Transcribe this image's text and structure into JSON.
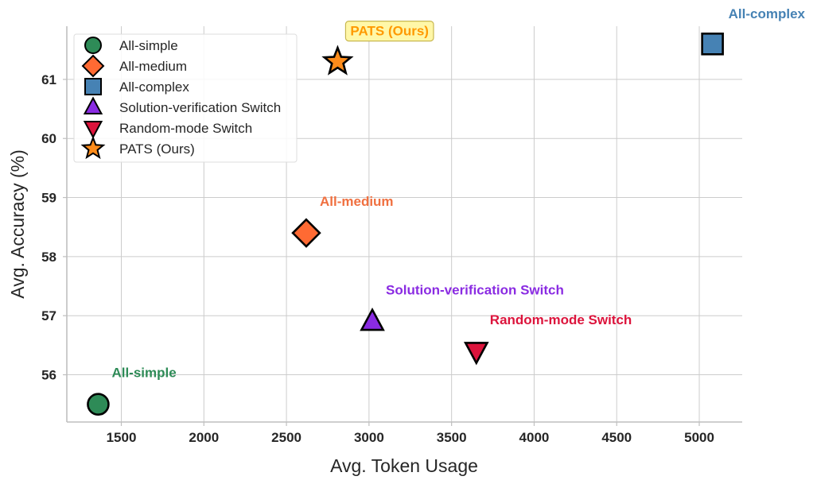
{
  "chart_data": {
    "type": "scatter",
    "xlabel": "Avg. Token Usage",
    "ylabel": "Avg. Accuracy (%)",
    "xlim": [
      1170,
      5260
    ],
    "ylim": [
      55.2,
      61.9
    ],
    "xticks": [
      1500,
      2000,
      2500,
      3000,
      3500,
      4000,
      4500,
      5000
    ],
    "yticks": [
      56,
      57,
      58,
      59,
      60,
      61
    ],
    "grid": true,
    "legend_position": "top-left",
    "series": [
      {
        "name": "All-simple",
        "marker": "circle",
        "color": "#2e8b57",
        "x": 1360,
        "y": 55.5,
        "annotation": "All-simple",
        "annotation_color": "#2e8b57"
      },
      {
        "name": "All-medium",
        "marker": "diamond",
        "color": "#ff6a33",
        "x": 2620,
        "y": 58.4,
        "annotation": "All-medium",
        "annotation_color": "#f07040"
      },
      {
        "name": "All-complex",
        "marker": "square",
        "color": "#4682b4",
        "x": 5080,
        "y": 61.6,
        "annotation": "All-complex",
        "annotation_color": "#4682b4"
      },
      {
        "name": "Solution-verification Switch",
        "marker": "triangle-up",
        "color": "#8a2be2",
        "x": 3020,
        "y": 56.9,
        "annotation": "Solution-verification Switch",
        "annotation_color": "#8a2be2"
      },
      {
        "name": "Random-mode Switch",
        "marker": "triangle-down",
        "color": "#dc143c",
        "x": 3650,
        "y": 56.4,
        "annotation": "Random-mode Switch",
        "annotation_color": "#dc143c"
      },
      {
        "name": "PATS (Ours)",
        "marker": "star",
        "color": "#ff8c1a",
        "x": 2810,
        "y": 61.3,
        "annotation": "PATS (Ours)",
        "annotation_color": "#ff9900",
        "annotation_boxed": true
      }
    ]
  }
}
